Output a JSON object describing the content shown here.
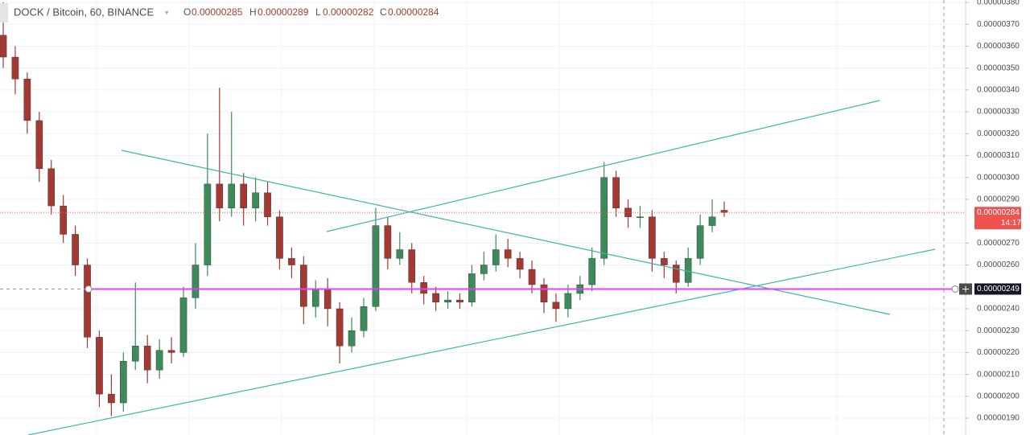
{
  "chart_data": {
    "type": "candlestick",
    "title": "DOCK / Bitcoin, 60, BINANCE",
    "header": {
      "open_label": "O",
      "open": "0.00000285",
      "high_label": "H",
      "high": "0.00000289",
      "low_label": "L",
      "low": "0.00000282",
      "close_label": "C",
      "close": "0.00000284"
    },
    "open": [
      3.65e-06,
      3.55e-06,
      3.45e-06,
      3.26e-06,
      3.04e-06,
      2.87e-06,
      2.74e-06,
      2.6e-06,
      2.27e-06,
      2.01e-06,
      1.97e-06,
      2.16e-06,
      2.23e-06,
      2.12e-06,
      2.21e-06,
      2.2e-06,
      2.45e-06,
      2.6e-06,
      2.97e-06,
      2.86e-06,
      2.97e-06,
      2.86e-06,
      2.93e-06,
      2.82e-06,
      2.63e-06,
      2.6e-06,
      2.41e-06,
      2.49e-06,
      2.4e-06,
      2.23e-06,
      2.3e-06,
      2.41e-06,
      2.78e-06,
      2.63e-06,
      2.67e-06,
      2.52e-06,
      2.47e-06,
      2.43e-06,
      2.44e-06,
      2.43e-06,
      2.56e-06,
      2.6e-06,
      2.67e-06,
      2.63e-06,
      2.58e-06,
      2.51e-06,
      2.43e-06,
      2.4e-06,
      2.47e-06,
      2.51e-06,
      2.63e-06,
      3e-06,
      2.86e-06,
      2.82e-06,
      2.82e-06,
      2.63e-06,
      2.6e-06,
      2.52e-06,
      2.63e-06,
      2.78e-06,
      2.85e-06
    ],
    "high": [
      3.8e-06,
      3.6e-06,
      3.48e-06,
      3.3e-06,
      3.08e-06,
      2.92e-06,
      2.78e-06,
      2.63e-06,
      2.3e-06,
      2.1e-06,
      2.2e-06,
      2.52e-06,
      2.28e-06,
      2.26e-06,
      2.27e-06,
      2.5e-06,
      2.7e-06,
      3.2e-06,
      3.41e-06,
      3.3e-06,
      3.02e-06,
      3e-06,
      2.98e-06,
      2.85e-06,
      2.68e-06,
      2.64e-06,
      2.53e-06,
      2.54e-06,
      2.43e-06,
      2.36e-06,
      2.45e-06,
      2.86e-06,
      2.82e-06,
      2.75e-06,
      2.7e-06,
      2.55e-06,
      2.5e-06,
      2.48e-06,
      2.47e-06,
      2.6e-06,
      2.66e-06,
      2.74e-06,
      2.72e-06,
      2.66e-06,
      2.62e-06,
      2.54e-06,
      2.47e-06,
      2.51e-06,
      2.55e-06,
      2.68e-06,
      3.07e-06,
      3.03e-06,
      2.9e-06,
      2.87e-06,
      2.85e-06,
      2.66e-06,
      2.62e-06,
      2.68e-06,
      2.83e-06,
      2.9e-06,
      2.89e-06
    ],
    "low": [
      3.5e-06,
      3.38e-06,
      3.2e-06,
      2.98e-06,
      2.83e-06,
      2.7e-06,
      2.55e-06,
      2.22e-06,
      1.95e-06,
      1.91e-06,
      1.93e-06,
      2.12e-06,
      2.06e-06,
      2.08e-06,
      2.15e-06,
      2.18e-06,
      2.4e-06,
      2.55e-06,
      2.8e-06,
      2.82e-06,
      2.78e-06,
      2.8e-06,
      2.78e-06,
      2.58e-06,
      2.54e-06,
      2.33e-06,
      2.36e-06,
      2.32e-06,
      2.15e-06,
      2.2e-06,
      2.27e-06,
      2.39e-06,
      2.58e-06,
      2.6e-06,
      2.47e-06,
      2.42e-06,
      2.39e-06,
      2.4e-06,
      2.4e-06,
      2.41e-06,
      2.53e-06,
      2.57e-06,
      2.59e-06,
      2.54e-06,
      2.47e-06,
      2.38e-06,
      2.34e-06,
      2.36e-06,
      2.44e-06,
      2.48e-06,
      2.6e-06,
      2.82e-06,
      2.77e-06,
      2.77e-06,
      2.57e-06,
      2.54e-06,
      2.47e-06,
      2.5e-06,
      2.6e-06,
      2.75e-06,
      2.82e-06
    ],
    "close": [
      3.55e-06,
      3.45e-06,
      3.26e-06,
      3.04e-06,
      2.87e-06,
      2.74e-06,
      2.6e-06,
      2.27e-06,
      2.01e-06,
      1.97e-06,
      2.16e-06,
      2.23e-06,
      2.12e-06,
      2.21e-06,
      2.2e-06,
      2.45e-06,
      2.6e-06,
      2.97e-06,
      2.86e-06,
      2.97e-06,
      2.86e-06,
      2.93e-06,
      2.82e-06,
      2.63e-06,
      2.6e-06,
      2.41e-06,
      2.49e-06,
      2.4e-06,
      2.23e-06,
      2.3e-06,
      2.41e-06,
      2.78e-06,
      2.63e-06,
      2.67e-06,
      2.52e-06,
      2.47e-06,
      2.43e-06,
      2.44e-06,
      2.43e-06,
      2.56e-06,
      2.6e-06,
      2.67e-06,
      2.63e-06,
      2.58e-06,
      2.51e-06,
      2.43e-06,
      2.4e-06,
      2.47e-06,
      2.51e-06,
      2.63e-06,
      3e-06,
      2.86e-06,
      2.82e-06,
      2.82e-06,
      2.63e-06,
      2.6e-06,
      2.52e-06,
      2.63e-06,
      2.78e-06,
      2.82e-06,
      2.84e-06
    ],
    "up_color": "#3d8a5a",
    "down_color": "#a33a32",
    "ylim": [
      1.823e-06,
      3.811e-06
    ],
    "yticks": [
      {
        "value": 1.9e-06,
        "label": "0.00000190"
      },
      {
        "value": 2e-06,
        "label": "0.00000200"
      },
      {
        "value": 2.1e-06,
        "label": "0.00000210"
      },
      {
        "value": 2.2e-06,
        "label": "0.00000220"
      },
      {
        "value": 2.3e-06,
        "label": "0.00000230"
      },
      {
        "value": 2.4e-06,
        "label": "0.00000240"
      },
      {
        "value": 2.6e-06,
        "label": "0.00000260"
      },
      {
        "value": 2.7e-06,
        "label": "0.00000270"
      },
      {
        "value": 2.9e-06,
        "label": "0.00000290"
      },
      {
        "value": 3e-06,
        "label": "0.00000300"
      },
      {
        "value": 3.1e-06,
        "label": "0.00000310"
      },
      {
        "value": 3.2e-06,
        "label": "0.00000320"
      },
      {
        "value": 3.3e-06,
        "label": "0.00000330"
      },
      {
        "value": 3.4e-06,
        "label": "0.00000340"
      },
      {
        "value": 3.5e-06,
        "label": "0.00000350"
      },
      {
        "value": 3.6e-06,
        "label": "0.00000360"
      },
      {
        "value": 3.7e-06,
        "label": "0.00000370"
      },
      {
        "value": 3.8e-06,
        "label": "0.00000380"
      }
    ],
    "grid": true,
    "last_price": {
      "value": 2.84e-06,
      "label": "0.00000284",
      "countdown": "14:17",
      "color": "#ef5350"
    },
    "horizontal_line": {
      "value": 2.49e-06,
      "label": "0.00000249",
      "color": "#e040fb"
    }
  }
}
